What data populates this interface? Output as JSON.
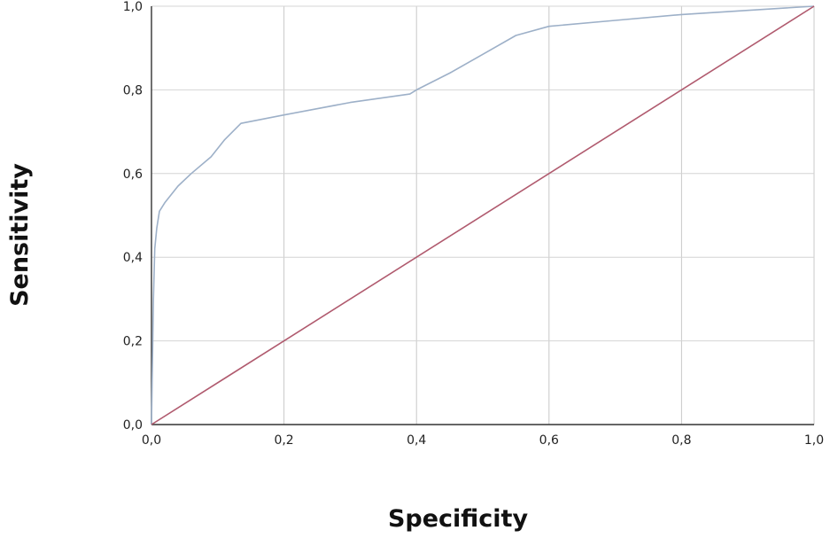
{
  "chart_data": {
    "type": "line",
    "xlabel": "Specificity",
    "ylabel": "Sensitivity",
    "xlim": [
      0,
      1
    ],
    "ylim": [
      0,
      1
    ],
    "x_ticks": [
      "0,0",
      "0,2",
      "0,4",
      "0,6",
      "0,8",
      "1,0"
    ],
    "y_ticks": [
      "0,0",
      "0,2",
      "0,4",
      "0,6",
      "0,8",
      "1,0"
    ],
    "grid": true,
    "legend": "none",
    "series": [
      {
        "color": "#9db0c8",
        "x": [
          0,
          0.003,
          0.005,
          0.008,
          0.012,
          0.02,
          0.04,
          0.06,
          0.09,
          0.11,
          0.135,
          0.2,
          0.3,
          0.39,
          0.4,
          0.45,
          0.5,
          0.55,
          0.6,
          0.7,
          0.8,
          0.9,
          1.0
        ],
        "y": [
          0,
          0.3,
          0.42,
          0.47,
          0.51,
          0.53,
          0.57,
          0.6,
          0.64,
          0.68,
          0.72,
          0.74,
          0.77,
          0.79,
          0.8,
          0.84,
          0.885,
          0.93,
          0.952,
          0.966,
          0.98,
          0.99,
          1.0
        ]
      },
      {
        "color": "#b05a6e",
        "x": [
          0,
          1
        ],
        "y": [
          0,
          1
        ]
      }
    ]
  }
}
